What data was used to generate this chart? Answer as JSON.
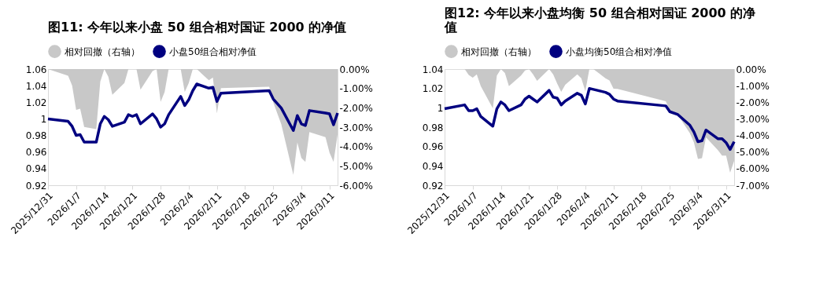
{
  "chart_data": [
    {
      "type": "line",
      "title": "图11:  今年以来小盘 50 组合相对国证 2000 的净值",
      "legend": "top",
      "grid": false,
      "x": [
        "2025-12-31",
        "2026-01-05",
        "2026-01-06",
        "2026-01-07",
        "2026-01-08",
        "2026-01-09",
        "2026-01-12",
        "2026-01-13",
        "2026-01-14",
        "2026-01-15",
        "2026-01-16",
        "2026-01-19",
        "2026-01-20",
        "2026-01-21",
        "2026-01-22",
        "2026-01-23",
        "2026-01-26",
        "2026-01-27",
        "2026-01-28",
        "2026-01-29",
        "2026-01-30",
        "2026-02-02",
        "2026-02-03",
        "2026-02-04",
        "2026-02-05",
        "2026-02-06",
        "2026-02-09",
        "2026-02-10",
        "2026-02-11",
        "2026-02-12",
        "2026-02-24",
        "2026-02-25",
        "2026-02-27",
        "2026-03-02",
        "2026-03-03",
        "2026-03-04",
        "2026-03-05",
        "2026-03-06",
        "2026-03-10",
        "2026-03-11",
        "2026-03-12",
        "2026-03-13"
      ],
      "series": [
        {
          "name": "相对回撤（右轴）",
          "type": "area",
          "axis": "y2",
          "color": "#c8c8c8",
          "values": [
            0,
            -0.34,
            -0.85,
            -2.11,
            -2.05,
            -2.99,
            -3.1,
            -0.65,
            0,
            -0.4,
            -1.33,
            -0.72,
            0,
            0,
            0,
            -1.06,
            -0.1,
            0,
            -1.69,
            -1.19,
            0,
            0,
            -1.19,
            -0.72,
            0,
            0,
            -0.58,
            -0.44,
            -2.29,
            -0.98,
            -0.91,
            -1.71,
            -2.85,
            -5.46,
            -3.79,
            -4.59,
            -4.79,
            -3.25,
            -3.52,
            -4.32,
            -4.79,
            -3.39
          ]
        },
        {
          "name": "小盘50组合相对净值",
          "type": "line",
          "color": "#000080",
          "values": [
            1.0,
            0.997,
            0.991,
            0.98,
            0.981,
            0.972,
            0.972,
            0.994,
            1.003,
            0.999,
            0.991,
            0.996,
            1.005,
            1.003,
            1.005,
            0.994,
            1.006,
            1.0,
            0.99,
            0.994,
            1.005,
            1.027,
            1.016,
            1.023,
            1.034,
            1.042,
            1.037,
            1.038,
            1.021,
            1.031,
            1.034,
            1.024,
            1.013,
            0.986,
            1.004,
            0.994,
            0.992,
            1.01,
            1.007,
            1.006,
            0.993,
            1.007
          ]
        }
      ],
      "xlim": [
        "2025-12-31",
        "2026-03-13"
      ],
      "xticks": [
        {
          "value": "2025-12-31",
          "label": "2025/12/31"
        },
        {
          "value": "2026-01-07",
          "label": "2026/1/7"
        },
        {
          "value": "2026-01-14",
          "label": "2026/1/14"
        },
        {
          "value": "2026-01-21",
          "label": "2026/1/21"
        },
        {
          "value": "2026-01-28",
          "label": "2026/1/28"
        },
        {
          "value": "2026-02-04",
          "label": "2026/2/4"
        },
        {
          "value": "2026-02-11",
          "label": "2026/2/11"
        },
        {
          "value": "2026-02-18",
          "label": "2026/2/18"
        },
        {
          "value": "2026-02-25",
          "label": "2026/2/25"
        },
        {
          "value": "2026-03-04",
          "label": "2026/3/4"
        },
        {
          "value": "2026-03-11",
          "label": "2026/3/11"
        }
      ],
      "ylim": [
        0.92,
        1.06
      ],
      "yticks": [
        {
          "value": 0.92,
          "label": "0.92"
        },
        {
          "value": 0.94,
          "label": "0.94"
        },
        {
          "value": 0.96,
          "label": "0.96"
        },
        {
          "value": 0.98,
          "label": "0.98"
        },
        {
          "value": 1,
          "label": "1"
        },
        {
          "value": 1.02,
          "label": "1.02"
        },
        {
          "value": 1.04,
          "label": "1.04"
        },
        {
          "value": 1.06,
          "label": "1.06"
        }
      ],
      "y2lim": [
        -6,
        0
      ],
      "y2ticks": [
        {
          "value": -6,
          "label": "-6.00%"
        },
        {
          "value": -5,
          "label": "-5.00%"
        },
        {
          "value": -4,
          "label": "-4.00%"
        },
        {
          "value": -3,
          "label": "-3.00%"
        },
        {
          "value": -2,
          "label": "-2.00%"
        },
        {
          "value": -1,
          "label": "-1.00%"
        },
        {
          "value": 0,
          "label": "0.00%"
        }
      ]
    },
    {
      "type": "line",
      "title": "图12:  今年以来小盘均衡 50 组合相对国证 2000 的净值",
      "legend": "top",
      "grid": false,
      "x": [
        "2025-12-31",
        "2026-01-05",
        "2026-01-06",
        "2026-01-07",
        "2026-01-08",
        "2026-01-09",
        "2026-01-12",
        "2026-01-13",
        "2026-01-14",
        "2026-01-15",
        "2026-01-16",
        "2026-01-19",
        "2026-01-20",
        "2026-01-21",
        "2026-01-22",
        "2026-01-23",
        "2026-01-26",
        "2026-01-27",
        "2026-01-28",
        "2026-01-29",
        "2026-01-30",
        "2026-02-02",
        "2026-02-03",
        "2026-02-04",
        "2026-02-05",
        "2026-02-06",
        "2026-02-09",
        "2026-02-10",
        "2026-02-11",
        "2026-02-12",
        "2026-02-24",
        "2026-02-25",
        "2026-02-27",
        "2026-03-02",
        "2026-03-03",
        "2026-03-04",
        "2026-03-05",
        "2026-03-06",
        "2026-03-09",
        "2026-03-10",
        "2026-03-11",
        "2026-03-12",
        "2026-03-13"
      ],
      "series": [
        {
          "name": "相对回撤（右轴）",
          "type": "area",
          "axis": "y2",
          "color": "#c8c8c8",
          "values": [
            0,
            0,
            -0.36,
            -0.52,
            -0.32,
            -1.03,
            -2.37,
            -0.39,
            0,
            -0.24,
            -1.03,
            -0.39,
            -0.08,
            0,
            -0.32,
            -0.71,
            0,
            -0.32,
            -0.87,
            -1.37,
            -0.95,
            -0.32,
            -0.55,
            -1.34,
            0,
            0,
            -0.55,
            -0.68,
            -1.18,
            -1.2,
            -1.94,
            -2.48,
            -2.76,
            -3.87,
            -4.42,
            -5.42,
            -5.37,
            -4.11,
            -4.9,
            -5.21,
            -5.21,
            -6.24,
            -5.53
          ]
        },
        {
          "name": "小盘均衡50组合相对净值",
          "type": "line",
          "color": "#000080",
          "values": [
            0.999,
            1.003,
            0.997,
            0.997,
            0.999,
            0.991,
            0.981,
            0.999,
            1.006,
            1.003,
            0.997,
            1.003,
            1.009,
            1.012,
            1.009,
            1.006,
            1.018,
            1.011,
            1.01,
            1.003,
            1.007,
            1.015,
            1.013,
            1.004,
            1.02,
            1.019,
            1.016,
            1.014,
            1.009,
            1.007,
            1.002,
            0.996,
            0.993,
            0.982,
            0.975,
            0.965,
            0.966,
            0.977,
            0.968,
            0.968,
            0.964,
            0.957,
            0.965
          ]
        }
      ],
      "xlim": [
        "2025-12-31",
        "2026-03-13"
      ],
      "xticks": [
        {
          "value": "2025-12-31",
          "label": "2025/12/31"
        },
        {
          "value": "2026-01-07",
          "label": "2026/1/7"
        },
        {
          "value": "2026-01-14",
          "label": "2026/1/14"
        },
        {
          "value": "2026-01-21",
          "label": "2026/1/21"
        },
        {
          "value": "2026-01-28",
          "label": "2026/1/28"
        },
        {
          "value": "2026-02-04",
          "label": "2026/2/4"
        },
        {
          "value": "2026-02-11",
          "label": "2026/2/11"
        },
        {
          "value": "2026-02-18",
          "label": "2026/2/18"
        },
        {
          "value": "2026-02-25",
          "label": "2026/2/25"
        },
        {
          "value": "2026-03-04",
          "label": "2026/3/4"
        },
        {
          "value": "2026-03-11",
          "label": "2026/3/11"
        }
      ],
      "ylim": [
        0.92,
        1.04
      ],
      "yticks": [
        {
          "value": 0.92,
          "label": "0.92"
        },
        {
          "value": 0.94,
          "label": "0.94"
        },
        {
          "value": 0.96,
          "label": "0.96"
        },
        {
          "value": 0.98,
          "label": "0.98"
        },
        {
          "value": 1,
          "label": "1"
        },
        {
          "value": 1.02,
          "label": "1.02"
        },
        {
          "value": 1.04,
          "label": "1.04"
        }
      ],
      "y2lim": [
        -7,
        0
      ],
      "y2ticks": [
        {
          "value": -7,
          "label": "-7.00%"
        },
        {
          "value": -6,
          "label": "-6.00%"
        },
        {
          "value": -5,
          "label": "-5.00%"
        },
        {
          "value": -4,
          "label": "-4.00%"
        },
        {
          "value": -3,
          "label": "-3.00%"
        },
        {
          "value": -2,
          "label": "-2.00%"
        },
        {
          "value": -1,
          "label": "-1.00%"
        },
        {
          "value": 0,
          "label": "0.00%"
        }
      ]
    }
  ]
}
